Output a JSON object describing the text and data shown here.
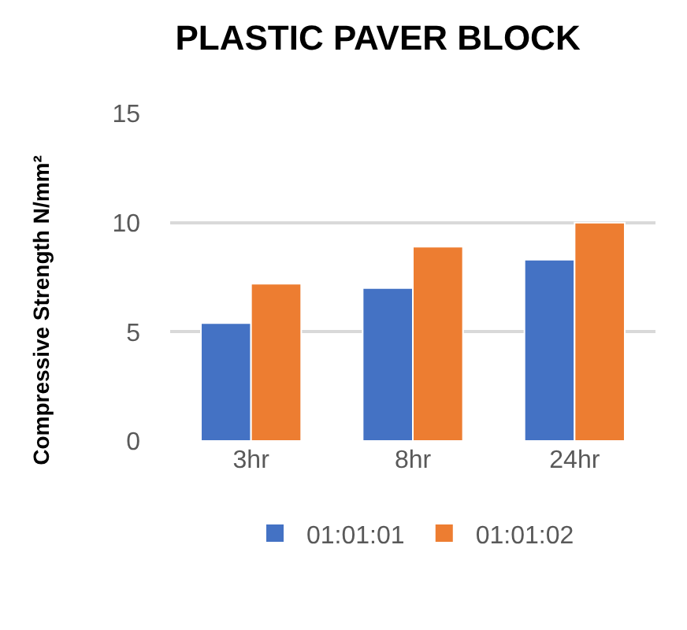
{
  "chart_data": {
    "type": "bar",
    "title": "PLASTIC PAVER BLOCK",
    "ylabel": "Compressive Strength N/mm²",
    "categories": [
      "3hr",
      "8hr",
      "24hr"
    ],
    "series": [
      {
        "name": "01:01:01",
        "color": "#4472c4",
        "values": [
          5.4,
          7.0,
          8.3
        ]
      },
      {
        "name": "01:01:02",
        "color": "#ed7d31",
        "values": [
          7.2,
          8.9,
          10.0
        ]
      }
    ],
    "ylim": [
      0,
      15
    ],
    "yticks": [
      0,
      5,
      10,
      15
    ],
    "grid": "y",
    "legend": "bottom"
  }
}
